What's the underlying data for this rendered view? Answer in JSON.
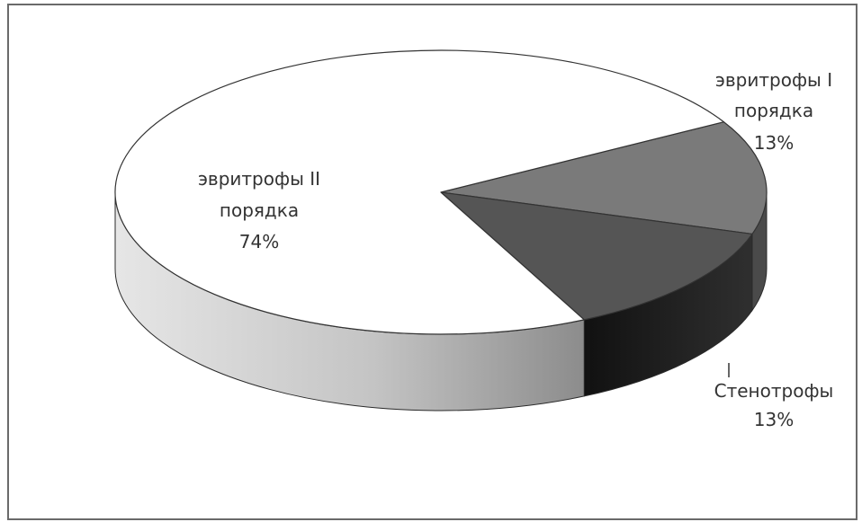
{
  "chart_data": {
    "type": "pie",
    "title": "",
    "slices": [
      {
        "label_lines": [
          "эвритрофы I",
          "порядка"
        ],
        "percent_label": "13%",
        "value": 13,
        "color": "#7a7a7a",
        "side_color": "#4a4a4a"
      },
      {
        "label_lines": [
          "Стенотрофы"
        ],
        "percent_label": "13%",
        "value": 13,
        "color": "#555555",
        "side_color": "#222222"
      },
      {
        "label_lines": [
          "эвритрофы II",
          "порядка"
        ],
        "percent_label": "74%",
        "value": 74,
        "color": "#ffffff",
        "side_color": "#bdbdbd"
      }
    ],
    "legend": "none",
    "style": "3d"
  }
}
